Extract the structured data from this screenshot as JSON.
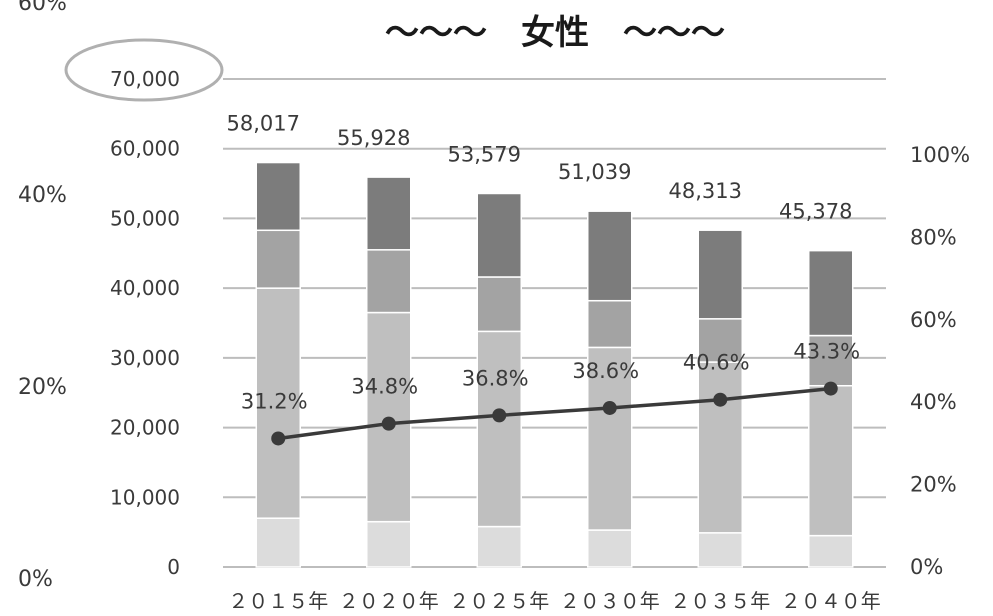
{
  "chart_data": {
    "type": "bar",
    "title": "～～～　女性　～～～",
    "categories": [
      "２０１５年",
      "２０２０年",
      "２０２５年",
      "２０３０年",
      "２０３５年",
      "２０４０年"
    ],
    "stacked": true,
    "series": [
      {
        "values": [
          7000,
          6500,
          5800,
          5300,
          4900,
          4500
        ],
        "color": "#dcdcdc"
      },
      {
        "values": [
          33000,
          30000,
          28000,
          26200,
          24500,
          21500
        ],
        "color": "#bfbfbf"
      },
      {
        "values": [
          8300,
          9000,
          7800,
          6700,
          6200,
          7200
        ],
        "color": "#a3a3a3"
      },
      {
        "values": [
          9717,
          10428,
          11979,
          12839,
          12713,
          12178
        ],
        "color": "#7c7c7c"
      }
    ],
    "totals": [
      58017,
      55928,
      53579,
      51039,
      48313,
      45378
    ],
    "total_labels": [
      "58,017",
      "55,928",
      "53,579",
      "51,039",
      "48,313",
      "45,378"
    ],
    "line_series": {
      "values": [
        31.2,
        34.8,
        36.8,
        38.6,
        40.6,
        43.3
      ],
      "labels": [
        "31.2%",
        "34.8%",
        "36.8%",
        "38.6%",
        "40.6%",
        "43.3%"
      ],
      "color": "#3a3a3a"
    },
    "y_left": {
      "ylim": [
        0,
        70000
      ],
      "ticks": [
        "0",
        "10,000",
        "20,000",
        "30,000",
        "40,000",
        "50,000",
        "60,000",
        "70,000"
      ]
    },
    "y_right": {
      "ylim": [
        0,
        100
      ],
      "ticks": [
        "0%",
        "20%",
        "40%",
        "60%",
        "80%",
        "100%"
      ]
    },
    "y_outer": {
      "ticks": [
        "0%",
        "20%",
        "40%",
        "60%"
      ]
    },
    "grid": true,
    "highlight_circle_tick": "70,000"
  }
}
